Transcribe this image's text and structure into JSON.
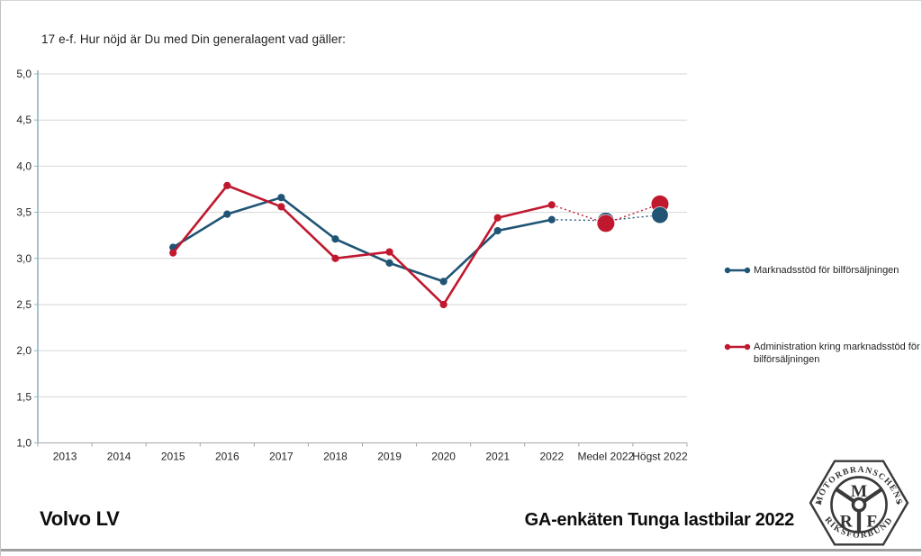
{
  "page": {
    "title": "17 e-f. Hur nöjd är Du med Din generalagent vad gäller:",
    "footer_left": "Volvo LV",
    "footer_right": "GA-enkäten Tunga lastbilar 2022"
  },
  "colors": {
    "series_blue": "#1f5474",
    "series_red": "#c0182f",
    "grid": "#d6d6d6",
    "x_axis": "#a6a6a6",
    "y_axis": "#8fb2c6",
    "label_text": "#262626"
  },
  "chart_data": {
    "type": "line",
    "categories": [
      "2013",
      "2014",
      "2015",
      "2016",
      "2017",
      "2018",
      "2019",
      "2020",
      "2021",
      "2022",
      "Medel 2022",
      "Högst 2022"
    ],
    "ylim": [
      1.0,
      5.0
    ],
    "ytick_step": 0.5,
    "ytick_labels": [
      "1,0",
      "1,5",
      "2,0",
      "2,5",
      "3,0",
      "3,5",
      "4,0",
      "4,5",
      "5,0"
    ],
    "grid": true,
    "legend_position": "right",
    "dotted_from_index": 9,
    "big_marker_indices": [
      10,
      11
    ],
    "series": [
      {
        "name": "Marknadsstöd för bilförsäljningen",
        "color": "#1f5474",
        "values": [
          null,
          null,
          3.12,
          3.48,
          3.66,
          3.21,
          2.95,
          2.75,
          3.3,
          3.42,
          3.41,
          3.47
        ]
      },
      {
        "name": "Administration kring marknadsstöd för bilförsäljningen",
        "color": "#c0182f",
        "values": [
          null,
          null,
          3.06,
          3.79,
          3.56,
          3.0,
          3.07,
          2.5,
          3.44,
          3.58,
          3.38,
          3.59
        ]
      }
    ]
  },
  "legend": {
    "items": [
      {
        "label": "Marknadsstöd för bilförsäljningen"
      },
      {
        "label": "Administration kring marknadsstöd för bilförsäljningen"
      }
    ]
  },
  "logo": {
    "top_text": "MOTORBRANSCHENS",
    "bottom_text": "RIKSFÖRBUND",
    "letter_m": "M",
    "letter_r": "R",
    "letter_f": "F"
  }
}
